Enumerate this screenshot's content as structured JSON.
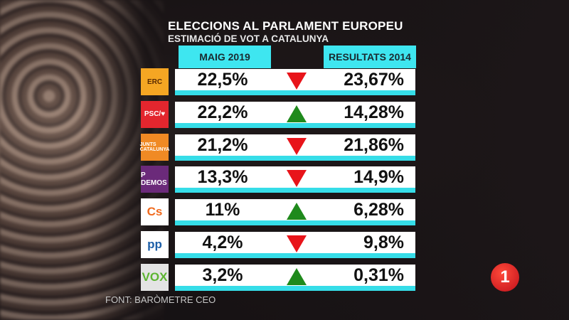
{
  "header": {
    "title": "ELECCIONS AL PARLAMENT EUROPEU",
    "subtitle": "ESTIMACIÓ DE VOT A CATALUNYA"
  },
  "chart_data": {
    "type": "table",
    "columns": [
      "MAIG 2019",
      "RESULTATS 2014"
    ],
    "rows": [
      {
        "party": "ERC",
        "logo_text": "ERC",
        "logo_color": "#f5a623",
        "estimate": "22,5%",
        "trend": "down",
        "result_2014": "23,67%"
      },
      {
        "party": "PSC",
        "logo_text": "PSC/♥",
        "logo_color": "#e3262e",
        "estimate": "22,2%",
        "trend": "up",
        "result_2014": "14,28%"
      },
      {
        "party": "Junts per Catalunya",
        "logo_text": "JUNTS CATALUNYA",
        "logo_color": "#f08a24",
        "estimate": "21,2%",
        "trend": "down",
        "result_2014": "21,86%"
      },
      {
        "party": "Podemos",
        "logo_text": "P DEMOS",
        "logo_color": "#6b2a7a",
        "estimate": "13,3%",
        "trend": "down",
        "result_2014": "14,9%"
      },
      {
        "party": "Cs",
        "logo_text": "Cs",
        "logo_color": "#ffffff",
        "estimate": "11%",
        "trend": "up",
        "result_2014": "6,28%"
      },
      {
        "party": "PP",
        "logo_text": "pp",
        "logo_color": "#ffffff",
        "estimate": "4,2%",
        "trend": "down",
        "result_2014": "9,8%"
      },
      {
        "party": "VOX",
        "logo_text": "VOX",
        "logo_color": "#e4e4e4",
        "estimate": "3,2%",
        "trend": "up",
        "result_2014": "0,31%"
      }
    ],
    "trend_colors": {
      "up": "#1f8a1c",
      "down": "#e8141a"
    }
  },
  "footer": {
    "source": "FONT: BARÒMETRE CEO"
  },
  "channel_logo": "1"
}
